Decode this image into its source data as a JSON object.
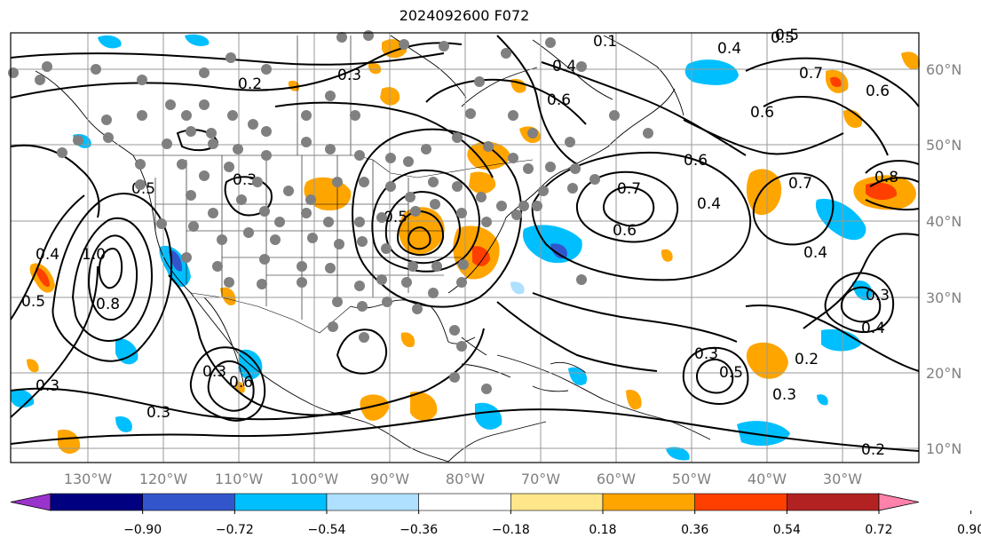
{
  "title": "2024092600 F072",
  "lon_labels": [
    "130°W",
    "120°W",
    "110°W",
    "100°W",
    "90°W",
    "80°W",
    "70°W",
    "60°W",
    "50°W",
    "40°W",
    "30°W"
  ],
  "lat_labels": [
    "60°N",
    "50°N",
    "40°N",
    "30°N",
    "20°N",
    "10°N"
  ],
  "colorbar": {
    "tick_labels": [
      "−0.90",
      "−0.72",
      "−0.54",
      "−0.36",
      "−0.18",
      "0.18",
      "0.36",
      "0.54",
      "0.72",
      "0.90"
    ],
    "colors": [
      "#9a33cc",
      "#000080",
      "#3355cc",
      "#00bfff",
      "#b0e0ff",
      "#ffffff",
      "#ffe68a",
      "#ffa500",
      "#ff3f00",
      "#b22222",
      "#ff82ab"
    ]
  },
  "contour_labels": [
    "0.2",
    "0.3",
    "0.1",
    "0.4",
    "0.5",
    "0.6",
    "0.4",
    "0.6",
    "0.6",
    "0.7",
    "0.8",
    "0.3",
    "0.5",
    "0.6",
    "0.6",
    "0.7",
    "0.4",
    "1.0",
    "0.8",
    "0.5",
    "0.3",
    "0.4",
    "0.3",
    "0.5",
    "0.6",
    "0.3",
    "0.3",
    "0.5",
    "0.4",
    "0.2",
    "0.3",
    "0.2",
    "0.4",
    "0.3",
    "0.7",
    "0.5"
  ],
  "colors": {
    "grid": "#999999",
    "contour": "#000000",
    "station_dot": "#808080",
    "axis_label": "#808080"
  }
}
